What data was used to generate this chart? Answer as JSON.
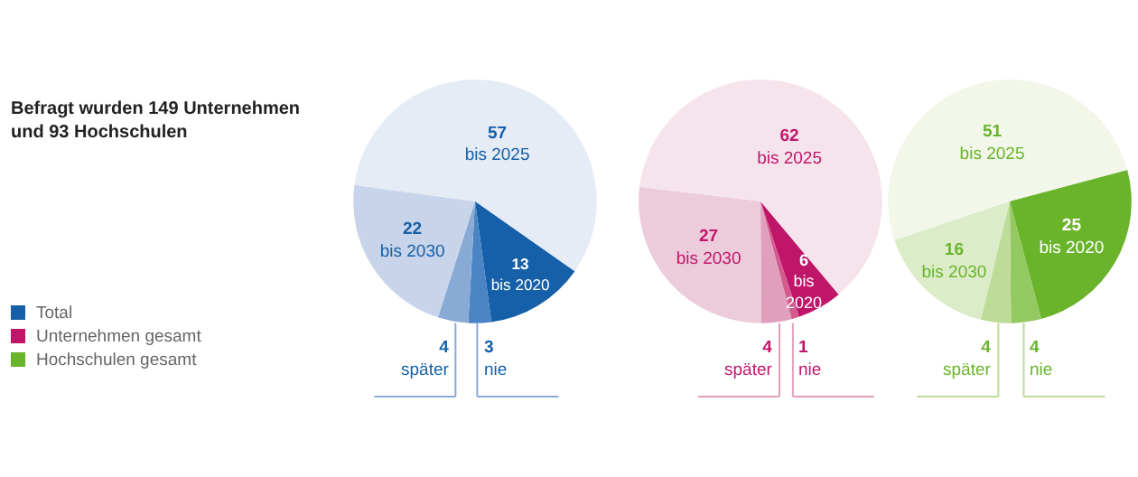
{
  "chart_data": [
    {
      "type": "other",
      "title": "Befragt wurden 149 Unternehmen und 93 Hochschulen",
      "annotations": [
        "Total",
        "Unternehmen gesamt",
        "Hochschulen gesamt"
      ]
    },
    {
      "type": "pie",
      "categories": [
        "bis 2020",
        "nie",
        "später",
        "bis 2030",
        "bis 2025"
      ],
      "values": [
        13,
        3,
        4,
        22,
        57
      ],
      "colors": [
        "#1560a8",
        "#4a84c4",
        "#8aaad6",
        "#c8d4ea",
        "#e6ecf6"
      ],
      "data_labels": true
    },
    {
      "type": "pie",
      "categories": [
        "bis 2020",
        "nie",
        "später",
        "bis 2030",
        "bis 2025"
      ],
      "values": [
        6,
        1,
        4,
        27,
        62
      ],
      "colors": [
        "#c0166a",
        "#d45a8e",
        "#e0a0bc",
        "#ecccda",
        "#f6e4ec"
      ],
      "data_labels": true
    },
    {
      "type": "pie",
      "categories": [
        "bis 2020",
        "nie",
        "später",
        "bis 2030",
        "bis 2025"
      ],
      "values": [
        25,
        4,
        4,
        16,
        51
      ],
      "colors": [
        "#6ab42c",
        "#94c860",
        "#bcdc98",
        "#dcecc8",
        "#f2f7ea"
      ],
      "data_labels": true
    }
  ]
}
